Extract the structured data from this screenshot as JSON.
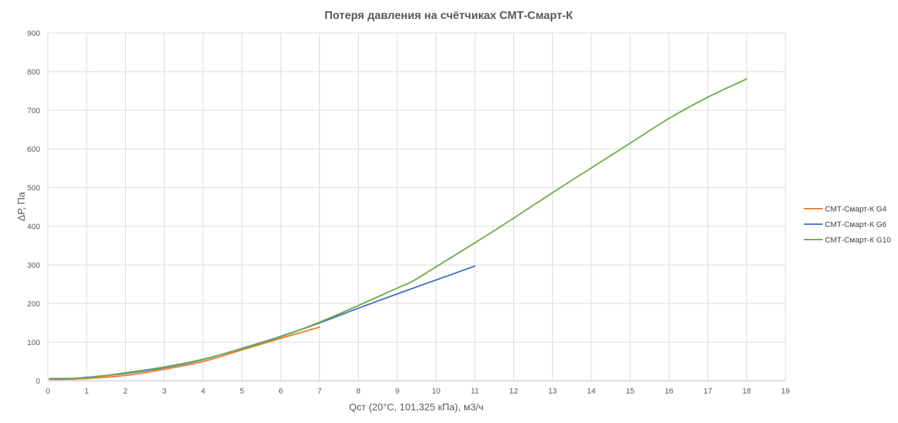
{
  "chart_data": {
    "type": "line",
    "title": "Потеря давления на счётчиках СМТ-Смарт-К",
    "xlabel": "Qст (20°С, 101,325 кПа), м3/ч",
    "ylabel": "ΔР, Па",
    "xlim": [
      0,
      19
    ],
    "ylim": [
      0,
      900
    ],
    "x_ticks": [
      0,
      1,
      2,
      3,
      4,
      5,
      6,
      7,
      8,
      9,
      10,
      11,
      12,
      13,
      14,
      15,
      16,
      17,
      18,
      19
    ],
    "y_ticks": [
      0,
      100,
      200,
      300,
      400,
      500,
      600,
      700,
      800,
      900
    ],
    "grid": true,
    "legend_position": "right",
    "series": [
      {
        "name": "СМТ-Смарт-К G4",
        "color": "#ED7D31",
        "x": [
          0.04,
          0.5,
          1,
          2,
          3,
          4,
          5,
          6,
          7
        ],
        "y": [
          4,
          4,
          6,
          14,
          30,
          50,
          80,
          110,
          139
        ]
      },
      {
        "name": "СМТ-Смарт-К G6",
        "color": "#4472C4",
        "x": [
          0.04,
          0.5,
          1,
          2,
          3,
          4,
          5,
          6,
          7,
          8,
          9,
          10,
          11
        ],
        "y": [
          5,
          5,
          9,
          19,
          34,
          55,
          84,
          115,
          150,
          188,
          225,
          261,
          297
        ]
      },
      {
        "name": "СМТ-Смарт-К G10",
        "color": "#70AD47",
        "x": [
          0.04,
          1,
          2,
          3,
          4,
          5,
          6,
          7,
          8,
          9,
          9.4,
          10,
          11,
          12,
          13,
          14,
          15,
          16,
          17,
          18
        ],
        "y": [
          6,
          8,
          21,
          36,
          56,
          83,
          114,
          152,
          195,
          240,
          258,
          295,
          357,
          421,
          487,
          551,
          615,
          679,
          734,
          781
        ]
      }
    ]
  }
}
